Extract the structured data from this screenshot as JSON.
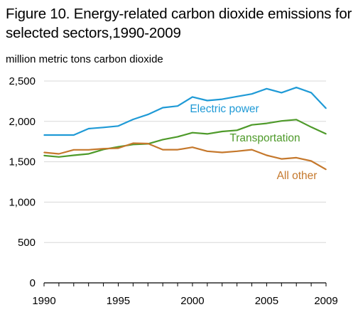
{
  "chart_data": {
    "type": "line",
    "title": "Figure 10. Energy-related carbon dioxide emissions for selected sectors,1990-2009",
    "ylabel": "million metric tons carbon dioxide",
    "xlabel": "",
    "x": [
      1990,
      1991,
      1992,
      1993,
      1994,
      1995,
      1996,
      1997,
      1998,
      1999,
      2000,
      2001,
      2002,
      2003,
      2004,
      2005,
      2006,
      2007,
      2008,
      2009
    ],
    "xticks": [
      "1990",
      "1995",
      "2000",
      "2005",
      "2009"
    ],
    "yticks": [
      "0",
      "500",
      "1,000",
      "1,500",
      "2,000",
      "2,500"
    ],
    "ylim": [
      0,
      2500
    ],
    "xlim": [
      1990,
      2009
    ],
    "grid": "horizontal",
    "series": [
      {
        "name": "Electric power",
        "color": "#1f9ad6",
        "values": [
          1831,
          1831,
          1831,
          1910,
          1925,
          1943,
          2025,
          2085,
          2170,
          2190,
          2303,
          2258,
          2275,
          2308,
          2340,
          2405,
          2356,
          2420,
          2356,
          2161
        ]
      },
      {
        "name": "Transportation",
        "color": "#4e9a2a",
        "values": [
          1577,
          1560,
          1580,
          1598,
          1652,
          1685,
          1714,
          1722,
          1775,
          1810,
          1860,
          1845,
          1875,
          1890,
          1957,
          1975,
          2005,
          2022,
          1930,
          1845
        ]
      },
      {
        "name": "All other",
        "color": "#c5782c",
        "values": [
          1615,
          1598,
          1648,
          1648,
          1662,
          1668,
          1730,
          1725,
          1650,
          1650,
          1680,
          1630,
          1615,
          1630,
          1650,
          1580,
          1535,
          1550,
          1510,
          1405
        ]
      }
    ]
  }
}
